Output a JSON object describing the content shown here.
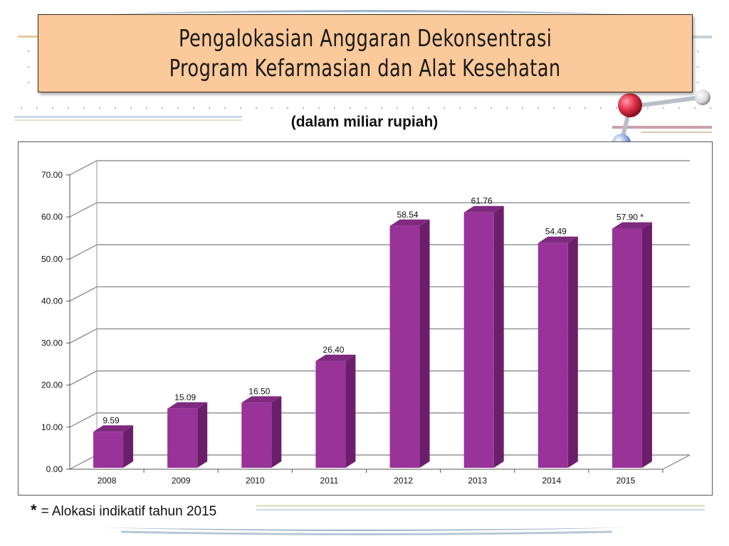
{
  "slide": {
    "title_line1": "Pengalokasian Anggaran Dekonsentrasi",
    "title_line2": "Program Kefarmasian dan Alat Kesehatan",
    "subtitle": "(dalam miliar rupiah)",
    "footnote_star": "*",
    "footnote_text": "= Alokasi indikatif  tahun 2015",
    "colors": {
      "title_bg": "#fbc99a",
      "bar_front": "#993399",
      "bar_side": "#6b1f6b",
      "bar_top": "#7f2a7f",
      "accent_red": "#d9304a",
      "accent_blue": "#8fa5e0"
    },
    "decor_icon": "molecule-model-icon"
  },
  "chart_data": {
    "type": "bar",
    "title": "",
    "xlabel": "",
    "ylabel": "",
    "categories": [
      "2008",
      "2009",
      "2010",
      "2011",
      "2012",
      "2013",
      "2014",
      "2015"
    ],
    "values": [
      9.59,
      15.09,
      16.5,
      26.4,
      58.54,
      61.76,
      54.49,
      57.9
    ],
    "data_labels": [
      "9.59",
      "15.09",
      "16.50",
      "26.40",
      "58.54",
      "61.76",
      "54.49",
      "57.90 *"
    ],
    "yticks": [
      "0.00",
      "10.00",
      "20.00",
      "30.00",
      "40.00",
      "50.00",
      "60.00",
      "70.00"
    ],
    "ylim": [
      0,
      70
    ],
    "grid": true,
    "legend": "none",
    "style": "3d-column"
  }
}
